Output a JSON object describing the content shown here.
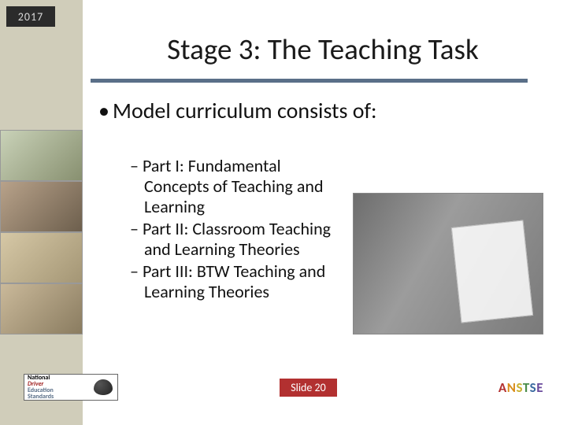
{
  "year": "2017",
  "title": "Stage 3: The Teaching Task",
  "main_bullet": "Model curriculum consists of:",
  "sub_items": [
    "Part I: Fundamental Concepts of Teaching and Learning",
    "Part II: Classroom Teaching and Learning Theories",
    "Part III: BTW Teaching and Learning Theories"
  ],
  "slide_label": "Slide 20",
  "logo_left": {
    "line1": "National",
    "line2": "Driver",
    "line3": "Education",
    "line4": "Standards"
  },
  "logo_right_letters": [
    "A",
    "N",
    "S",
    "T",
    "S",
    "E"
  ],
  "colors": {
    "sidebar_bg": "#d0cdba",
    "year_badge_bg": "#2b2b2b",
    "title_rule": "#5a6f88",
    "pill_bg": "#b23030"
  }
}
